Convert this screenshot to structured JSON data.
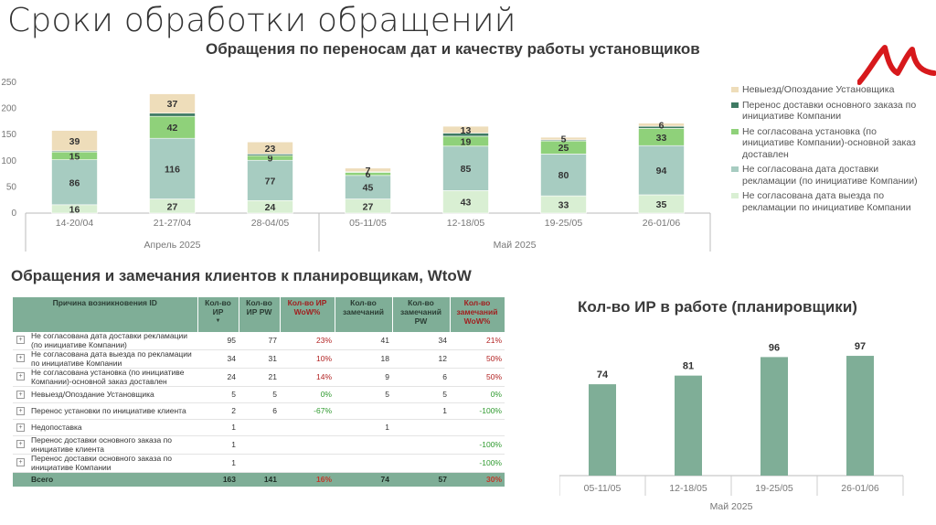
{
  "slide_title": "Сроки обработки обращений",
  "section1_title": "Обращения по переносам дат и качеству работы установщиков",
  "section2_title": "Обращения и замечания клиентов к планировщикам, WtoW",
  "section3_title": "Кол-во ИР в работе (планировщики)",
  "colors": {
    "light_green": "#d4e8c4",
    "dark_teal": "#3f7a63",
    "green": "#8fd17a",
    "teal_light": "#a7ccc1",
    "pale_green": "#d9efd3",
    "tan": "#eeddba",
    "bar_teal": "#7fae97",
    "table_header": "#7fae97",
    "logo_red": "#d7191c"
  },
  "chart_data": [
    {
      "type": "bar",
      "stacked": true,
      "categories": [
        "14-20/04",
        "21-27/04",
        "28-04/05",
        "05-11/05",
        "12-18/05",
        "19-25/05",
        "26-01/06"
      ],
      "groups": [
        {
          "label": "Апрель 2025",
          "categories": [
            "14-20/04",
            "21-27/04",
            "28-04/05"
          ]
        },
        {
          "label": "Май 2025",
          "categories": [
            "05-11/05",
            "12-18/05",
            "19-25/05",
            "26-01/06"
          ]
        }
      ],
      "ylim": [
        0,
        250
      ],
      "yticks": [
        "0",
        "50",
        "100",
        "150",
        "200",
        "250"
      ],
      "series": [
        {
          "name": "Не согласована дата выезда по рекламации по инициативе Компании",
          "color": "#d9efd3",
          "values": [
            16,
            27,
            24,
            27,
            43,
            33,
            35
          ],
          "labels": [
            "16",
            "27",
            "24",
            "27",
            "43",
            "33",
            "35"
          ]
        },
        {
          "name": "Не согласована дата доставки рекламации (по инициативе Компании)",
          "color": "#a7ccc1",
          "values": [
            86,
            116,
            77,
            45,
            85,
            80,
            94
          ],
          "labels": [
            "86",
            "116",
            "77",
            "45",
            "85",
            "80",
            "94"
          ]
        },
        {
          "name": "Не согласована установка (по инициативе Компании)-основной заказ доставлен",
          "color": "#8fd17a",
          "values": [
            15,
            42,
            9,
            6,
            19,
            25,
            33
          ],
          "labels": [
            "15",
            "42",
            "9",
            "6",
            "19",
            "25",
            "33"
          ]
        },
        {
          "name": "Перенос доставки основного заказа по инициативе Компании",
          "color": "#3f7a63",
          "values": [
            2,
            6,
            3,
            1,
            6,
            2,
            4
          ],
          "labels": [
            "",
            "",
            "",
            "",
            "",
            "",
            ""
          ]
        },
        {
          "name": "Невыезд/Опоздание Установщика",
          "color": "#eeddba",
          "values": [
            39,
            37,
            23,
            7,
            13,
            5,
            6
          ],
          "labels": [
            "39",
            "37",
            "23",
            "7",
            "13",
            "5",
            "6"
          ]
        }
      ],
      "legend": [
        "Невыезд/Опоздание Установщика",
        "Перенос доставки основного заказа по инициативе Компании",
        "Не согласована установка (по инициативе Компании)-основной заказ доставлен",
        "Не согласована дата доставки рекламации (по инициативе Компании)",
        "Не согласована дата выезда по рекламации по инициативе Компании"
      ],
      "legend_position": "right"
    },
    {
      "type": "bar",
      "categories": [
        "05-11/05",
        "12-18/05",
        "19-25/05",
        "26-01/06"
      ],
      "values": [
        74,
        81,
        96,
        97
      ],
      "labels": [
        "74",
        "81",
        "96",
        "97"
      ],
      "group_label": "Май 2025"
    }
  ],
  "table": {
    "headers": [
      "Причина возникновения ID",
      "Кол-во ИР",
      "Кол-во ИР PW",
      "Кол-во ИР WoW%",
      "Кол-во замечаний",
      "Кол-во замечаний PW",
      "Кол-во замечаний WoW%"
    ],
    "rows": [
      {
        "expander": "+",
        "reason": "Не согласована дата доставки рекламации (по инициативе Компании)",
        "ir": "95",
        "ir_pw": "77",
        "ir_wow": "23%",
        "zam": "41",
        "zam_pw": "34",
        "zam_wow": "21%"
      },
      {
        "expander": "+",
        "reason": "Не согласована дата выезда по рекламации по инициативе Компании",
        "ir": "34",
        "ir_pw": "31",
        "ir_wow": "10%",
        "zam": "18",
        "zam_pw": "12",
        "zam_wow": "50%"
      },
      {
        "expander": "+",
        "reason": "Не согласована установка (по инициативе Компании)-основной заказ доставлен",
        "ir": "24",
        "ir_pw": "21",
        "ir_wow": "14%",
        "zam": "9",
        "zam_pw": "6",
        "zam_wow": "50%"
      },
      {
        "expander": "+",
        "reason": "Невыезд/Опоздание Установщика",
        "ir": "5",
        "ir_pw": "5",
        "ir_wow": "0%",
        "zam": "5",
        "zam_pw": "5",
        "zam_wow": "0%"
      },
      {
        "expander": "+",
        "reason": "Перенос установки по инициативе клиента",
        "ir": "2",
        "ir_pw": "6",
        "ir_wow": "-67%",
        "zam": "",
        "zam_pw": "1",
        "zam_wow": "-100%"
      },
      {
        "expander": "+",
        "reason": "Недопоставка",
        "ir": "1",
        "ir_pw": "",
        "ir_wow": "",
        "zam": "1",
        "zam_pw": "",
        "zam_wow": ""
      },
      {
        "expander": "+",
        "reason": "Перенос доставки основного заказа по инициативе клиента",
        "ir": "1",
        "ir_pw": "",
        "ir_wow": "",
        "zam": "",
        "zam_pw": "",
        "zam_wow": "-100%"
      },
      {
        "expander": "+",
        "reason": "Перенос доставки основного заказа по инициативе Компании",
        "ir": "1",
        "ir_pw": "",
        "ir_wow": "",
        "zam": "",
        "zam_pw": "",
        "zam_wow": "-100%"
      }
    ],
    "total": {
      "reason": "Всего",
      "ir": "163",
      "ir_pw": "141",
      "ir_wow": "16%",
      "zam": "74",
      "zam_pw": "57",
      "zam_wow": "30%"
    }
  }
}
